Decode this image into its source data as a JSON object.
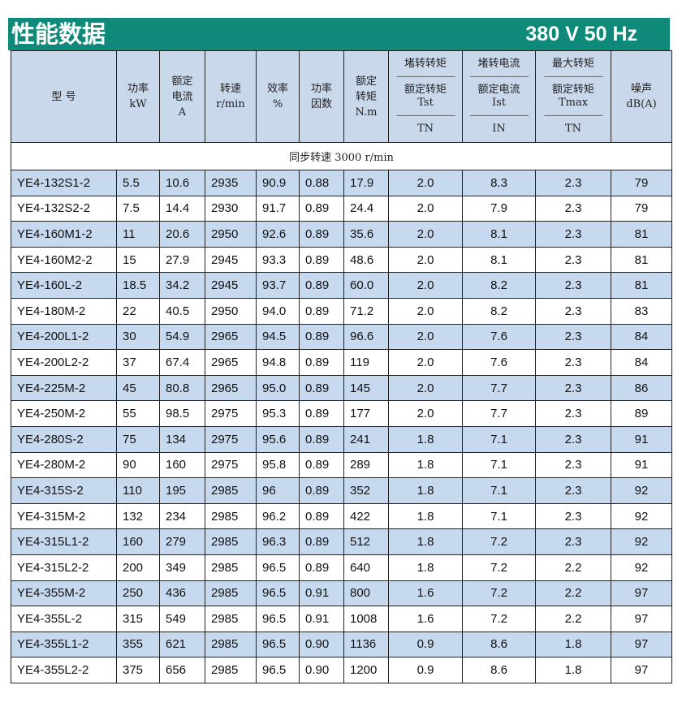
{
  "title": {
    "left": "性能数据",
    "right": "380 V 50 Hz"
  },
  "headers": {
    "model": "型  号",
    "power": "功率\nkW",
    "current": "额定\n电流\nA",
    "speed": "转速\nr/min",
    "efficiency": "效率\n%",
    "pf": "功率\n因数",
    "torque": "额定\n转矩\nN.m",
    "lrt": {
      "top": "堵转转矩",
      "mid": "额定转矩",
      "sym": "Tst",
      "den": "TN"
    },
    "lrc": {
      "top": "堵转电流",
      "mid": "额定电流",
      "sym": "Ist",
      "den": "IN"
    },
    "maxt": {
      "top": "最大转矩",
      "mid": "额定转矩",
      "sym": "Tmax",
      "den": "TN"
    },
    "noise": "噪声\ndB(A)"
  },
  "subheader": "同步转速  3000  r/min",
  "rows": [
    [
      "YE4-132S1-2",
      "5.5",
      "10.6",
      "2935",
      "90.9",
      "0.88",
      "17.9",
      "2.0",
      "8.3",
      "2.3",
      "79"
    ],
    [
      "YE4-132S2-2",
      "7.5",
      "14.4",
      "2930",
      "91.7",
      "0.89",
      "24.4",
      "2.0",
      "7.9",
      "2.3",
      "79"
    ],
    [
      "YE4-160M1-2",
      "11",
      "20.6",
      "2950",
      "92.6",
      "0.89",
      "35.6",
      "2.0",
      "8.1",
      "2.3",
      "81"
    ],
    [
      "YE4-160M2-2",
      "15",
      "27.9",
      "2945",
      "93.3",
      "0.89",
      "48.6",
      "2.0",
      "8.1",
      "2.3",
      "81"
    ],
    [
      "YE4-160L-2",
      "18.5",
      "34.2",
      "2945",
      "93.7",
      "0.89",
      "60.0",
      "2.0",
      "8.2",
      "2.3",
      "81"
    ],
    [
      "YE4-180M-2",
      "22",
      "40.5",
      "2950",
      "94.0",
      "0.89",
      "71.2",
      "2.0",
      "8.2",
      "2.3",
      "83"
    ],
    [
      "YE4-200L1-2",
      "30",
      "54.9",
      "2965",
      "94.5",
      "0.89",
      "96.6",
      "2.0",
      "7.6",
      "2.3",
      "84"
    ],
    [
      "YE4-200L2-2",
      "37",
      "67.4",
      "2965",
      "94.8",
      "0.89",
      "119",
      "2.0",
      "7.6",
      "2.3",
      "84"
    ],
    [
      "YE4-225M-2",
      "45",
      "80.8",
      "2965",
      "95.0",
      "0.89",
      "145",
      "2.0",
      "7.7",
      "2.3",
      "86"
    ],
    [
      "YE4-250M-2",
      "55",
      "98.5",
      "2975",
      "95.3",
      "0.89",
      "177",
      "2.0",
      "7.7",
      "2.3",
      "89"
    ],
    [
      "YE4-280S-2",
      "75",
      "134",
      "2975",
      "95.6",
      "0.89",
      "241",
      "1.8",
      "7.1",
      "2.3",
      "91"
    ],
    [
      "YE4-280M-2",
      "90",
      "160",
      "2975",
      "95.8",
      "0.89",
      "289",
      "1.8",
      "7.1",
      "2.3",
      "91"
    ],
    [
      "YE4-315S-2",
      "110",
      "195",
      "2985",
      "96",
      "0.89",
      "352",
      "1.8",
      "7.1",
      "2.3",
      "92"
    ],
    [
      "YE4-315M-2",
      "132",
      "234",
      "2985",
      "96.2",
      "0.89",
      "422",
      "1.8",
      "7.1",
      "2.3",
      "92"
    ],
    [
      "YE4-315L1-2",
      "160",
      "279",
      "2985",
      "96.3",
      "0.89",
      "512",
      "1.8",
      "7.2",
      "2.3",
      "92"
    ],
    [
      "YE4-315L2-2",
      "200",
      "349",
      "2985",
      "96.5",
      "0.89",
      "640",
      "1.8",
      "7.2",
      "2.2",
      "92"
    ],
    [
      "YE4-355M-2",
      "250",
      "436",
      "2985",
      "96.5",
      "0.91",
      "800",
      "1.6",
      "7.2",
      "2.2",
      "97"
    ],
    [
      "YE4-355L-2",
      "315",
      "549",
      "2985",
      "96.5",
      "0.91",
      "1008",
      "1.6",
      "7.2",
      "2.2",
      "97"
    ],
    [
      "YE4-355L1-2",
      "355",
      "621",
      "2985",
      "96.5",
      "0.90",
      "1136",
      "0.9",
      "8.6",
      "1.8",
      "97"
    ],
    [
      "YE4-355L2-2",
      "375",
      "656",
      "2985",
      "96.5",
      "0.90",
      "1200",
      "0.9",
      "8.6",
      "1.8",
      "97"
    ]
  ],
  "colors": {
    "title_bg": "#0f8a7a",
    "header_bg": "#c9d8ea",
    "stripe": "#c7d9ee"
  }
}
